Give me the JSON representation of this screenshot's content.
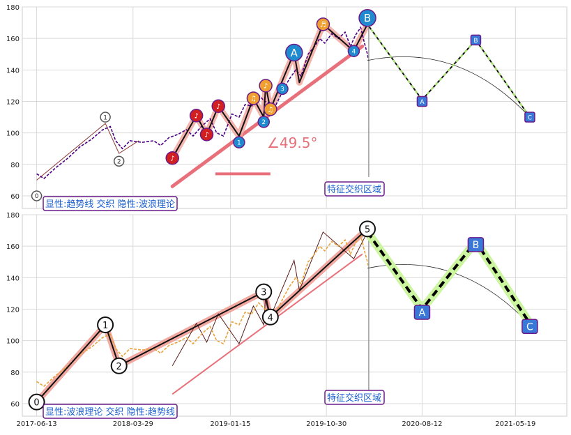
{
  "colors": {
    "price_top": "#4b0082",
    "price_bottom": "#e8a33a",
    "trend_line": "#e8707a",
    "wave_highlight": "#f1a8a0",
    "projection_top": "#1a7a1a",
    "projection_bottom": "#ccf5a0",
    "label_blue": "#1a5fd0",
    "label_box": "#6a1a8a",
    "grid": "#d9d9d9",
    "axis_text": "#222222"
  },
  "chart_data": [
    {
      "type": "line",
      "panel": "top",
      "y_ticks": [
        60,
        80,
        100,
        120,
        140,
        160,
        180
      ],
      "ylim": [
        52,
        180
      ],
      "x_ticks": [
        "2017-06-13",
        "2018-03-29",
        "2019-01-15",
        "2019-10-30",
        "2020-08-12",
        "2021-05-19"
      ],
      "xlim": [
        "2017-05-01",
        "2021-10-20"
      ],
      "grid": true,
      "price_series": [
        [
          "2017-06-13",
          74
        ],
        [
          "2017-07-05",
          71
        ],
        [
          "2017-08-10",
          78
        ],
        [
          "2017-09-15",
          84
        ],
        [
          "2017-10-20",
          91
        ],
        [
          "2017-11-25",
          96
        ],
        [
          "2017-12-28",
          102
        ],
        [
          "2018-01-20",
          104
        ],
        [
          "2018-02-05",
          95
        ],
        [
          "2018-02-25",
          90
        ],
        [
          "2018-03-20",
          95
        ],
        [
          "2018-04-25",
          94
        ],
        [
          "2018-05-30",
          95
        ],
        [
          "2018-06-20",
          92
        ],
        [
          "2018-07-15",
          97
        ],
        [
          "2018-08-10",
          99
        ],
        [
          "2018-09-05",
          102
        ],
        [
          "2018-09-25",
          98
        ],
        [
          "2018-10-20",
          104
        ],
        [
          "2018-11-15",
          109
        ],
        [
          "2018-12-05",
          100
        ],
        [
          "2018-12-25",
          98
        ],
        [
          "2019-01-20",
          112
        ],
        [
          "2019-02-10",
          110
        ],
        [
          "2019-02-28",
          118
        ],
        [
          "2019-03-20",
          117
        ],
        [
          "2019-04-10",
          124
        ],
        [
          "2019-04-28",
          120
        ],
        [
          "2019-05-15",
          119
        ],
        [
          "2019-06-01",
          118
        ],
        [
          "2019-06-20",
          126
        ],
        [
          "2019-07-10",
          134
        ],
        [
          "2019-07-30",
          140
        ],
        [
          "2019-08-15",
          136
        ],
        [
          "2019-09-05",
          150
        ],
        [
          "2019-09-25",
          155
        ],
        [
          "2019-10-10",
          160
        ],
        [
          "2019-10-25",
          157
        ],
        [
          "2019-11-15",
          163
        ],
        [
          "2019-12-05",
          160
        ],
        [
          "2019-12-25",
          164
        ],
        [
          "2020-01-10",
          155
        ],
        [
          "2020-01-25",
          162
        ],
        [
          "2020-02-10",
          167
        ],
        [
          "2020-02-20",
          158
        ],
        [
          "2020-03-01",
          150
        ],
        [
          "2020-03-05",
          146
        ]
      ],
      "wave_points": [
        {
          "date": "2018-07-25",
          "value": 84,
          "label": "♪",
          "style": "red"
        },
        {
          "date": "2018-10-05",
          "value": 111,
          "label": "♪",
          "style": "red"
        },
        {
          "date": "2018-11-05",
          "value": 99,
          "label": "♪",
          "style": "red"
        },
        {
          "date": "2018-12-10",
          "value": 117,
          "label": "♪",
          "style": "red"
        },
        {
          "date": "2019-02-10",
          "value": 94,
          "label": "1",
          "style": "blue"
        },
        {
          "date": "2019-03-25",
          "value": 122,
          "label": "♫",
          "style": "orange"
        },
        {
          "date": "2019-04-25",
          "value": 107,
          "label": "2",
          "style": "blue"
        },
        {
          "date": "2019-05-01",
          "value": 130,
          "label": "♪",
          "style": "orange"
        },
        {
          "date": "2019-05-15",
          "value": 115,
          "label": "♫",
          "style": "orange"
        },
        {
          "date": "2019-06-20",
          "value": 128,
          "label": "3",
          "style": "blue"
        },
        {
          "date": "2019-07-25",
          "value": 151,
          "label": "A",
          "style": "blue-large"
        },
        {
          "date": "2019-10-20",
          "value": 169,
          "label": "♬",
          "style": "orange"
        },
        {
          "date": "2020-01-20",
          "value": 152,
          "label": "4",
          "style": "blue"
        },
        {
          "date": "2020-03-01",
          "value": 173,
          "label": "B",
          "style": "blue-large"
        },
        {
          "date": "2017-06-13",
          "value": 60,
          "label": "0",
          "style": "white"
        },
        {
          "date": "2018-01-05",
          "value": 110,
          "label": "1",
          "style": "white"
        },
        {
          "date": "2018-02-15",
          "value": 82,
          "label": "2",
          "style": "white"
        }
      ],
      "wave_path": [
        [
          "2018-07-25",
          84
        ],
        [
          "2018-10-05",
          111
        ],
        [
          "2018-11-05",
          99
        ],
        [
          "2018-12-10",
          117
        ],
        [
          "2019-02-10",
          98
        ],
        [
          "2019-03-25",
          122
        ],
        [
          "2019-04-25",
          110
        ],
        [
          "2019-05-01",
          130
        ],
        [
          "2019-05-15",
          115
        ],
        [
          "2019-07-25",
          151
        ],
        [
          "2019-08-10",
          132
        ],
        [
          "2019-10-20",
          169
        ],
        [
          "2020-01-20",
          152
        ],
        [
          "2020-03-01",
          169
        ]
      ],
      "elliott_path": [
        [
          "2017-06-13",
          70
        ],
        [
          "2018-01-05",
          106
        ],
        [
          "2018-02-15",
          87
        ],
        [
          "2018-04-15",
          95
        ]
      ],
      "trend_line": [
        [
          "2018-07-25",
          66
        ],
        [
          "2020-02-15",
          155
        ]
      ],
      "angle_annotation": "∠49.5°",
      "projection": [
        [
          "2020-03-01",
          169
        ],
        [
          "2020-08-12",
          121
        ],
        [
          "2021-01-20",
          159
        ],
        [
          "2021-07-01",
          110
        ]
      ],
      "projection_labels": [
        {
          "date": "2020-08-12",
          "value": 120,
          "label": "A"
        },
        {
          "date": "2021-01-20",
          "value": 159,
          "label": "B"
        },
        {
          "date": "2021-07-01",
          "value": 110,
          "label": "C"
        }
      ],
      "overlap_label": "特征交织区域",
      "legend_label": "显性:趋势线 交织 隐性:波浪理论"
    },
    {
      "type": "line",
      "panel": "bottom",
      "y_ticks": [
        60,
        80,
        100,
        120,
        140,
        160,
        180
      ],
      "ylim": [
        52,
        180
      ],
      "x_ticks": [
        "2017-06-13",
        "2018-03-29",
        "2019-01-15",
        "2019-10-30",
        "2020-08-12",
        "2021-05-19"
      ],
      "xlim": [
        "2017-05-01",
        "2021-10-20"
      ],
      "grid": true,
      "elliott_points": [
        {
          "date": "2017-06-13",
          "value": 61,
          "label": "0"
        },
        {
          "date": "2018-01-05",
          "value": 110,
          "label": "1"
        },
        {
          "date": "2018-02-15",
          "value": 84,
          "label": "2"
        },
        {
          "date": "2019-04-25",
          "value": 131,
          "label": "3"
        },
        {
          "date": "2019-05-15",
          "value": 115,
          "label": "4"
        },
        {
          "date": "2020-03-01",
          "value": 171,
          "label": "5"
        }
      ],
      "projection_labels": [
        {
          "date": "2020-08-12",
          "value": 118,
          "label": "A"
        },
        {
          "date": "2021-01-20",
          "value": 161,
          "label": "B"
        },
        {
          "date": "2021-07-01",
          "value": 109,
          "label": "C"
        }
      ],
      "overlap_label": "特征交织区域",
      "legend_label": "显性:波浪理论 交织 隐性:趋势线"
    }
  ]
}
